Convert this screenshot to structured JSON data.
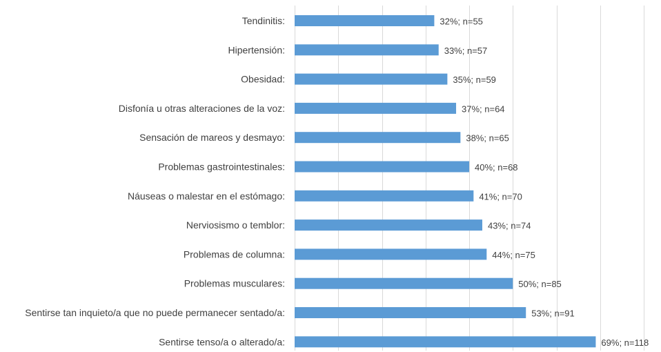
{
  "chart_data": {
    "type": "bar",
    "orientation": "horizontal",
    "title": "",
    "xlabel": "",
    "ylabel": "",
    "xlim": [
      0,
      80
    ],
    "grid": true,
    "bar_color": "#5b9bd5",
    "categories": [
      "Tendinitis:",
      "Hipertensión:",
      "Obesidad:",
      "Disfonía u otras alteraciones de la voz:",
      "Sensación de mareos y desmayo:",
      "Problemas gastrointestinales:",
      "Náuseas o malestar en el estómago:",
      "Nerviosismo o temblor:",
      "Problemas de columna:",
      "Problemas musculares:",
      "Sentirse tan inquieto/a que no puede permanecer sentado/a:",
      "Sentirse tenso/a o alterado/a:"
    ],
    "values": [
      32,
      33,
      35,
      37,
      38,
      40,
      41,
      43,
      44,
      50,
      53,
      69
    ],
    "data_labels": [
      "32%; n=55",
      "33%; n=57",
      "35%; n=59",
      "37%; n=64",
      "38%; n=65",
      "40%; n=68",
      "41%; n=70",
      "43%; n=74",
      "44%; n=75",
      "50%; n=85",
      "53%; n=91",
      "69%; n=118"
    ]
  }
}
